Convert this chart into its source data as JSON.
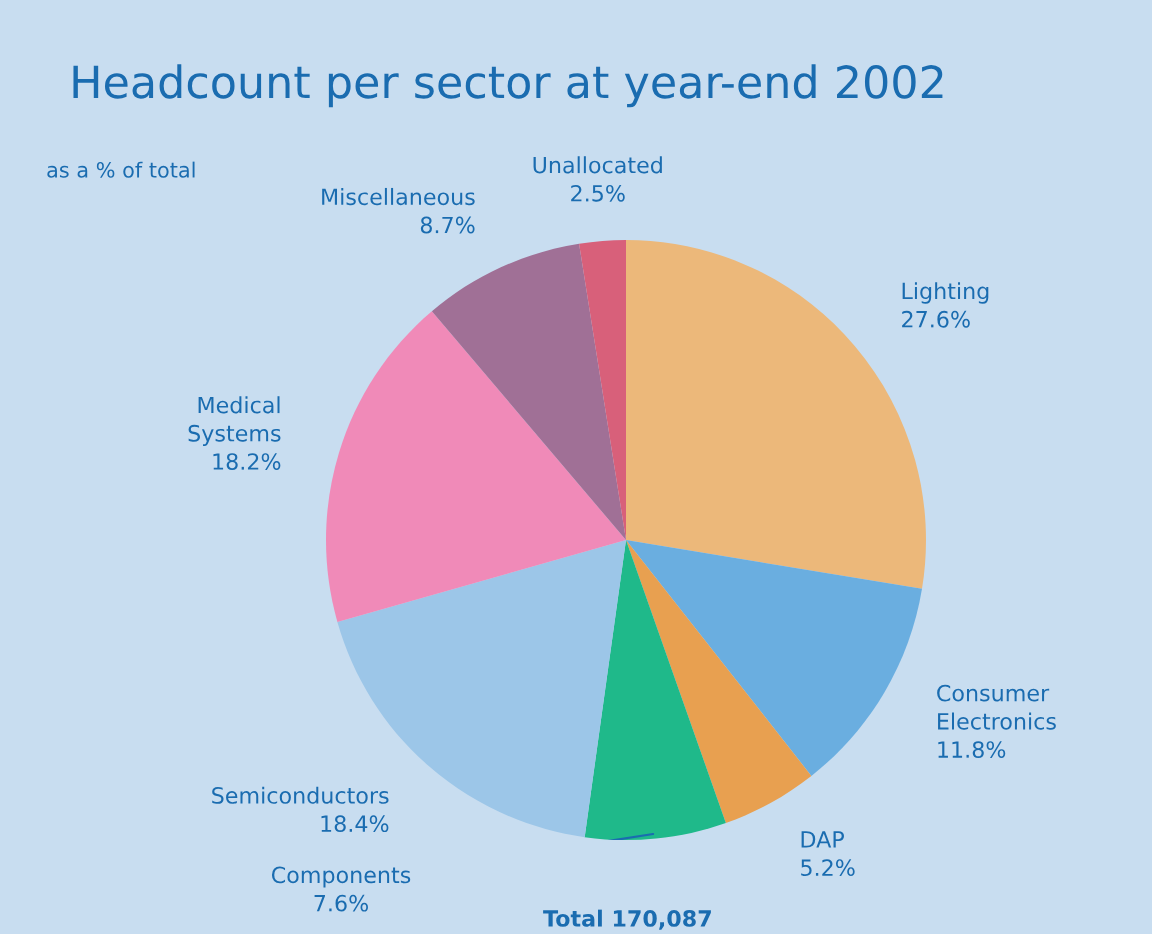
{
  "chart_data": {
    "type": "pie",
    "title": "Headcount per sector at year-end 2002",
    "subtitle": "as a % of total",
    "categories": [
      "Lighting",
      "Consumer Electronics",
      "DAP",
      "Components",
      "Semiconductors",
      "Medical Systems",
      "Miscellaneous",
      "Unallocated"
    ],
    "values": [
      27.6,
      11.8,
      5.2,
      7.6,
      18.4,
      18.2,
      8.7,
      2.5
    ],
    "colors": [
      "#ecb87a",
      "#6aaee0",
      "#e8a050",
      "#1fb98a",
      "#9cc6e8",
      "#f08ab8",
      "#a07096",
      "#d8607a"
    ],
    "value_labels": [
      "27.6%",
      "11.8%",
      "5.2%",
      "7.6%",
      "18.4%",
      "18.2%",
      "8.7%",
      "2.5%"
    ],
    "annotations": [
      "Total 170,087"
    ]
  }
}
